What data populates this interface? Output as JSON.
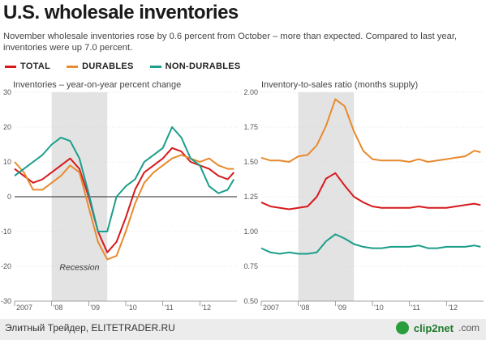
{
  "title": "U.S. wholesale inventories",
  "subtitle": "November wholesale inventories rose by 0.6 percent from October – more than expected. Compared to last year, inventories were up 7.0 percent.",
  "legend": [
    {
      "label": "TOTAL",
      "color": "#d7191c"
    },
    {
      "label": "DURABLES",
      "color": "#e88a2e"
    },
    {
      "label": "NON-DURABLES",
      "color": "#1b9e8a"
    }
  ],
  "footer": {
    "left": "Элитный Трейдер, ELITETRADER.RU",
    "brand": "clip2net",
    "suffix": ".com"
  },
  "chart_data": [
    {
      "type": "line",
      "title": "Inventories – year-on-year percent change",
      "recession_label": "Recession",
      "recession": [
        2008.0,
        2009.5
      ],
      "xlim": [
        2007.0,
        2013.0
      ],
      "ylim": [
        -30,
        30
      ],
      "yticks": [
        30,
        20,
        10,
        0,
        -10,
        -20,
        -30
      ],
      "xticks": [
        {
          "x": 2007.0,
          "label": "2007"
        },
        {
          "x": 2008.0,
          "label": "'08"
        },
        {
          "x": 2009.0,
          "label": "'09"
        },
        {
          "x": 2010.0,
          "label": "'10"
        },
        {
          "x": 2011.0,
          "label": "'11"
        },
        {
          "x": 2012.0,
          "label": "'12"
        }
      ],
      "x": [
        2007.0,
        2007.25,
        2007.5,
        2007.75,
        2008.0,
        2008.25,
        2008.5,
        2008.75,
        2009.0,
        2009.25,
        2009.5,
        2009.75,
        2010.0,
        2010.25,
        2010.5,
        2010.75,
        2011.0,
        2011.25,
        2011.5,
        2011.75,
        2012.0,
        2012.25,
        2012.5,
        2012.75,
        2012.92
      ],
      "series": [
        {
          "name": "TOTAL",
          "color": "#d7191c",
          "values": [
            8,
            6,
            4,
            5,
            7,
            9,
            11,
            8,
            0,
            -10,
            -16,
            -13,
            -6,
            2,
            7,
            9,
            11,
            14,
            13,
            10,
            9,
            8,
            6,
            5,
            7
          ]
        },
        {
          "name": "DURABLES",
          "color": "#e88a2e",
          "values": [
            10,
            7,
            2,
            2,
            4,
            6,
            9,
            7,
            -3,
            -13,
            -18,
            -17,
            -10,
            -2,
            4,
            7,
            9,
            11,
            12,
            11,
            10,
            11,
            9,
            8,
            8
          ]
        },
        {
          "name": "NON-DURABLES",
          "color": "#1b9e8a",
          "values": [
            6,
            8,
            10,
            12,
            15,
            17,
            16,
            11,
            1,
            -10,
            -10,
            0,
            3,
            5,
            10,
            12,
            14,
            20,
            17,
            11,
            9,
            3,
            1,
            2,
            5
          ]
        }
      ]
    },
    {
      "type": "line",
      "title": "Inventory-to-sales ratio (months supply)",
      "recession": [
        2008.0,
        2009.5
      ],
      "xlim": [
        2007.0,
        2013.0
      ],
      "ylim": [
        0.5,
        2.0
      ],
      "yticks": [
        2.0,
        1.75,
        1.5,
        1.25,
        1.0,
        0.75,
        0.5
      ],
      "ytick_labels": [
        "2.00",
        "1.75",
        "1.50",
        "1.25",
        "1.00",
        "0.75",
        "0.50"
      ],
      "xticks": [
        {
          "x": 2007.0,
          "label": "2007"
        },
        {
          "x": 2008.0,
          "label": "'08"
        },
        {
          "x": 2009.0,
          "label": "'09"
        },
        {
          "x": 2010.0,
          "label": "'10"
        },
        {
          "x": 2011.0,
          "label": "'11"
        },
        {
          "x": 2012.0,
          "label": "'12"
        }
      ],
      "x": [
        2007.0,
        2007.25,
        2007.5,
        2007.75,
        2008.0,
        2008.25,
        2008.5,
        2008.75,
        2009.0,
        2009.25,
        2009.5,
        2009.75,
        2010.0,
        2010.25,
        2010.5,
        2010.75,
        2011.0,
        2011.25,
        2011.5,
        2011.75,
        2012.0,
        2012.25,
        2012.5,
        2012.75,
        2012.92
      ],
      "series": [
        {
          "name": "DURABLES",
          "color": "#e88a2e",
          "values": [
            1.53,
            1.51,
            1.51,
            1.5,
            1.54,
            1.55,
            1.62,
            1.76,
            1.95,
            1.9,
            1.72,
            1.58,
            1.52,
            1.51,
            1.51,
            1.51,
            1.5,
            1.52,
            1.5,
            1.51,
            1.52,
            1.53,
            1.54,
            1.58,
            1.57
          ]
        },
        {
          "name": "TOTAL",
          "color": "#d7191c",
          "values": [
            1.21,
            1.18,
            1.17,
            1.16,
            1.17,
            1.18,
            1.25,
            1.38,
            1.42,
            1.33,
            1.25,
            1.21,
            1.18,
            1.17,
            1.17,
            1.17,
            1.17,
            1.18,
            1.17,
            1.17,
            1.17,
            1.18,
            1.19,
            1.2,
            1.19
          ]
        },
        {
          "name": "NON-DURABLES",
          "color": "#1b9e8a",
          "values": [
            0.88,
            0.85,
            0.84,
            0.85,
            0.84,
            0.84,
            0.85,
            0.93,
            0.98,
            0.95,
            0.91,
            0.89,
            0.88,
            0.88,
            0.89,
            0.89,
            0.89,
            0.9,
            0.88,
            0.88,
            0.89,
            0.89,
            0.89,
            0.9,
            0.89
          ]
        }
      ]
    }
  ]
}
